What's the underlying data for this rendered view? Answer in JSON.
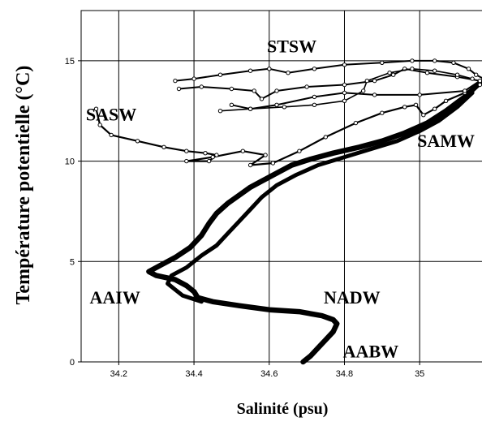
{
  "chart_data": {
    "type": "line",
    "xlabel": "Salinité (psu)",
    "ylabel": "Température potentielle (°C)",
    "xlim": [
      34.1,
      35.17
    ],
    "ylim": [
      0,
      17.5
    ],
    "grid": true,
    "x_ticks": [
      {
        "value": 34.2,
        "label": "34.2"
      },
      {
        "value": 34.4,
        "label": "34.4"
      },
      {
        "value": 34.6,
        "label": "34.6"
      },
      {
        "value": 34.8,
        "label": "34.8"
      },
      {
        "value": 35.0,
        "label": "35"
      }
    ],
    "y_ticks": [
      {
        "value": 0,
        "label": "0"
      },
      {
        "value": 5,
        "label": "5"
      },
      {
        "value": 10,
        "label": "10"
      },
      {
        "value": 15,
        "label": "15"
      }
    ],
    "annotations": [
      {
        "text": "STSW",
        "x": 34.66,
        "y": 15.7
      },
      {
        "text": "SASW",
        "x": 34.18,
        "y": 12.3
      },
      {
        "text": "SAMW",
        "x": 35.07,
        "y": 11.0
      },
      {
        "text": "AAIW",
        "x": 34.19,
        "y": 3.2
      },
      {
        "text": "NADW",
        "x": 34.82,
        "y": 3.2
      },
      {
        "text": "AABW",
        "x": 34.87,
        "y": 0.5
      }
    ],
    "series": [
      {
        "values": [
          [
            34.69,
            0.0
          ],
          [
            34.71,
            0.3
          ],
          [
            34.73,
            0.7
          ],
          [
            34.75,
            1.1
          ],
          [
            34.77,
            1.5
          ],
          [
            34.78,
            1.9
          ],
          [
            34.77,
            2.1
          ],
          [
            34.74,
            2.3
          ],
          [
            34.68,
            2.5
          ],
          [
            34.6,
            2.6
          ],
          [
            34.52,
            2.8
          ],
          [
            34.45,
            3.0
          ],
          [
            34.41,
            3.2
          ],
          [
            34.4,
            3.5
          ],
          [
            34.38,
            3.8
          ],
          [
            34.35,
            4.1
          ],
          [
            34.3,
            4.3
          ],
          [
            34.28,
            4.5
          ],
          [
            34.31,
            4.8
          ],
          [
            34.35,
            5.2
          ],
          [
            34.39,
            5.7
          ],
          [
            34.42,
            6.3
          ],
          [
            34.44,
            6.9
          ],
          [
            34.46,
            7.4
          ],
          [
            34.49,
            7.9
          ],
          [
            34.52,
            8.3
          ],
          [
            34.55,
            8.7
          ],
          [
            34.58,
            9.0
          ],
          [
            34.62,
            9.4
          ],
          [
            34.66,
            9.8
          ],
          [
            34.71,
            10.1
          ],
          [
            34.77,
            10.4
          ],
          [
            34.84,
            10.7
          ],
          [
            34.9,
            11.0
          ],
          [
            34.96,
            11.4
          ],
          [
            35.02,
            11.9
          ],
          [
            35.07,
            12.5
          ],
          [
            35.12,
            13.2
          ],
          [
            35.16,
            13.9
          ]
        ]
      },
      {
        "values": [
          [
            34.42,
            3.0
          ],
          [
            34.37,
            3.3
          ],
          [
            34.35,
            3.6
          ],
          [
            34.33,
            3.9
          ],
          [
            34.34,
            4.3
          ],
          [
            34.38,
            4.7
          ],
          [
            34.42,
            5.3
          ],
          [
            34.46,
            5.8
          ],
          [
            34.49,
            6.4
          ],
          [
            34.52,
            7.0
          ],
          [
            34.55,
            7.6
          ],
          [
            34.58,
            8.2
          ],
          [
            34.62,
            8.8
          ],
          [
            34.67,
            9.3
          ],
          [
            34.73,
            9.8
          ],
          [
            34.8,
            10.2
          ],
          [
            34.87,
            10.6
          ],
          [
            34.94,
            11.0
          ],
          [
            35.0,
            11.5
          ],
          [
            35.05,
            12.0
          ],
          [
            35.1,
            12.7
          ],
          [
            35.14,
            13.4
          ]
        ]
      },
      {
        "values": [
          [
            34.14,
            12.6
          ],
          [
            34.15,
            11.8
          ],
          [
            34.18,
            11.3
          ],
          [
            34.25,
            11.0
          ],
          [
            34.32,
            10.7
          ],
          [
            34.38,
            10.5
          ],
          [
            34.43,
            10.4
          ],
          [
            34.46,
            10.3
          ],
          [
            34.44,
            10.0
          ],
          [
            34.38,
            10.0
          ],
          [
            34.45,
            10.2
          ],
          [
            34.53,
            10.5
          ],
          [
            34.59,
            10.3
          ],
          [
            34.55,
            9.8
          ],
          [
            34.61,
            9.9
          ],
          [
            34.68,
            10.5
          ],
          [
            34.75,
            11.2
          ],
          [
            34.83,
            11.9
          ],
          [
            34.9,
            12.4
          ],
          [
            34.96,
            12.7
          ],
          [
            34.99,
            12.8
          ],
          [
            35.01,
            12.3
          ],
          [
            35.04,
            12.6
          ],
          [
            35.07,
            13.0
          ],
          [
            35.12,
            13.4
          ],
          [
            35.16,
            13.8
          ]
        ]
      },
      {
        "values": [
          [
            34.36,
            13.6
          ],
          [
            34.42,
            13.7
          ],
          [
            34.5,
            13.6
          ],
          [
            34.56,
            13.5
          ],
          [
            34.58,
            13.1
          ],
          [
            34.62,
            13.5
          ],
          [
            34.7,
            13.7
          ],
          [
            34.8,
            13.8
          ],
          [
            34.88,
            14.0
          ],
          [
            34.93,
            14.3
          ],
          [
            34.96,
            14.6
          ],
          [
            35.02,
            14.4
          ],
          [
            35.1,
            14.2
          ],
          [
            35.16,
            14.0
          ],
          [
            35.12,
            13.5
          ],
          [
            35.0,
            13.3
          ],
          [
            34.88,
            13.3
          ],
          [
            34.8,
            13.4
          ],
          [
            34.72,
            13.2
          ],
          [
            34.62,
            12.8
          ],
          [
            34.55,
            12.6
          ],
          [
            34.5,
            12.8
          ]
        ]
      },
      {
        "values": [
          [
            34.35,
            14.0
          ],
          [
            34.4,
            14.1
          ],
          [
            34.47,
            14.3
          ],
          [
            34.55,
            14.5
          ],
          [
            34.6,
            14.6
          ],
          [
            34.65,
            14.4
          ],
          [
            34.72,
            14.6
          ],
          [
            34.8,
            14.8
          ],
          [
            34.9,
            14.9
          ],
          [
            34.98,
            15.0
          ],
          [
            35.04,
            15.0
          ],
          [
            35.09,
            14.9
          ],
          [
            35.13,
            14.6
          ],
          [
            35.15,
            14.3
          ],
          [
            35.17,
            14.1
          ]
        ]
      },
      {
        "values": [
          [
            34.47,
            12.5
          ],
          [
            34.55,
            12.6
          ],
          [
            34.64,
            12.7
          ],
          [
            34.72,
            12.8
          ],
          [
            34.8,
            13.0
          ],
          [
            34.85,
            13.5
          ],
          [
            34.86,
            14.0
          ],
          [
            34.92,
            14.4
          ],
          [
            34.98,
            14.6
          ],
          [
            35.04,
            14.5
          ],
          [
            35.1,
            14.3
          ],
          [
            35.14,
            14.1
          ]
        ]
      }
    ]
  }
}
